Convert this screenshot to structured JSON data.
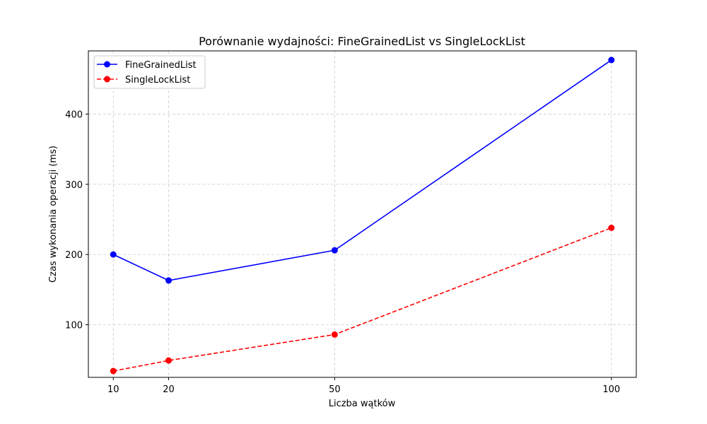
{
  "chart_data": {
    "type": "line",
    "title": "Porównanie wydajności: FineGrainedList vs SingleLockList",
    "xlabel": "Liczba wątków",
    "ylabel": "Czas wykonania operacji (ms)",
    "x": [
      10,
      20,
      50,
      100
    ],
    "x_ticks": [
      "10",
      "20",
      "50",
      "100"
    ],
    "y_ticks": [
      "100",
      "200",
      "300",
      "400"
    ],
    "xlim": [
      5.5,
      104.5
    ],
    "ylim": [
      25,
      490
    ],
    "grid": true,
    "legend_position": "top-left",
    "series": [
      {
        "name": "FineGrainedList",
        "values": [
          200,
          163,
          206,
          477
        ],
        "color": "#0000ff",
        "line_style": "solid",
        "marker": "circle"
      },
      {
        "name": "SingleLockList",
        "values": [
          34,
          49,
          86,
          238
        ],
        "color": "#ff0000",
        "line_style": "dashed",
        "marker": "circle"
      }
    ]
  }
}
